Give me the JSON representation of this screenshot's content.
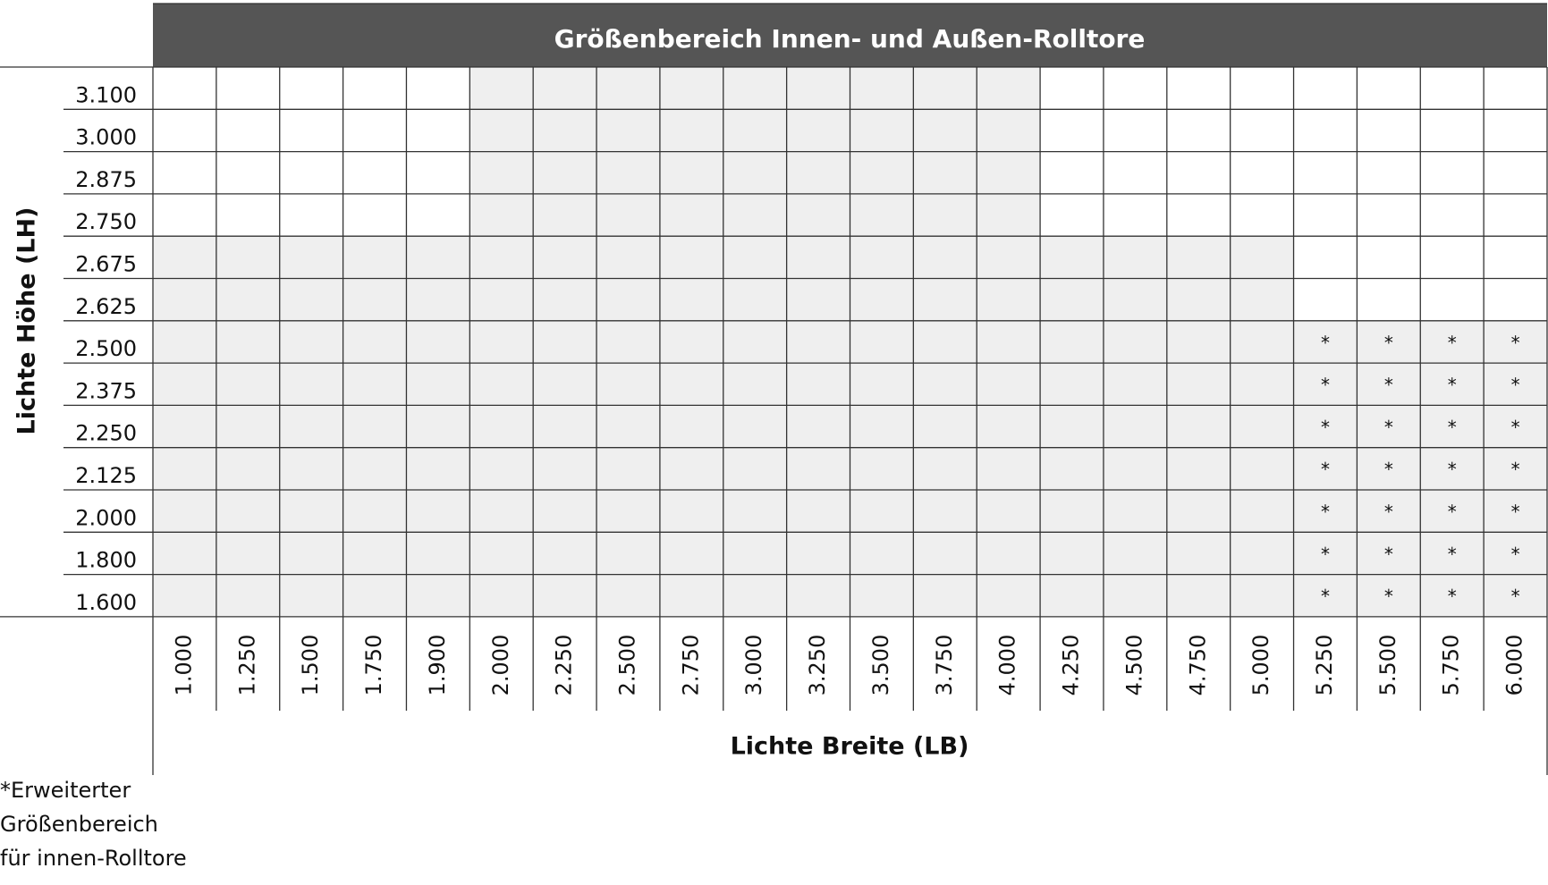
{
  "header": {
    "title": "Größenbereich Innen- und Außen-Rolltore"
  },
  "y_axis_label": "Lichte Höhe (LH)",
  "x_axis_label": "Lichte Breite (LB)",
  "columns": [
    "1.000",
    "1.250",
    "1.500",
    "1.750",
    "1.900",
    "2.000",
    "2.250",
    "2.500",
    "2.750",
    "3.000",
    "3.250",
    "3.500",
    "3.750",
    "4.000",
    "4.250",
    "4.500",
    "4.750",
    "5.000",
    "5.250",
    "5.500",
    "5.750",
    "6.000"
  ],
  "table": {
    "rows": [
      {
        "label": "3.100",
        "fills": [
          "#ffffff",
          "#ffffff",
          "#ffffff",
          "#ffffff",
          "#ffffff",
          "#efefef",
          "#efefef",
          "#efefef",
          "#efefef",
          "#efefef",
          "#efefef",
          "#efefef",
          "#efefef",
          "#efefef",
          "#ffffff",
          "#ffffff",
          "#ffffff",
          "#ffffff",
          "#ffffff",
          "#ffffff",
          "#ffffff",
          "#ffffff"
        ],
        "notes": [
          null,
          null,
          null,
          null,
          null,
          null,
          null,
          null,
          null,
          null,
          null,
          null,
          null,
          null,
          null,
          null,
          null,
          null,
          null,
          null,
          null,
          null
        ]
      },
      {
        "label": "3.000",
        "fills": [
          "#ffffff",
          "#ffffff",
          "#ffffff",
          "#ffffff",
          "#ffffff",
          "#efefef",
          "#efefef",
          "#efefef",
          "#efefef",
          "#efefef",
          "#efefef",
          "#efefef",
          "#efefef",
          "#efefef",
          "#ffffff",
          "#ffffff",
          "#ffffff",
          "#ffffff",
          "#ffffff",
          "#ffffff",
          "#ffffff",
          "#ffffff"
        ],
        "notes": [
          null,
          null,
          null,
          null,
          null,
          null,
          null,
          null,
          null,
          null,
          null,
          null,
          null,
          null,
          null,
          null,
          null,
          null,
          null,
          null,
          null,
          null
        ]
      },
      {
        "label": "2.875",
        "fills": [
          "#ffffff",
          "#ffffff",
          "#ffffff",
          "#ffffff",
          "#ffffff",
          "#efefef",
          "#efefef",
          "#efefef",
          "#efefef",
          "#efefef",
          "#efefef",
          "#efefef",
          "#efefef",
          "#efefef",
          "#ffffff",
          "#ffffff",
          "#ffffff",
          "#ffffff",
          "#ffffff",
          "#ffffff",
          "#ffffff",
          "#ffffff"
        ],
        "notes": [
          null,
          null,
          null,
          null,
          null,
          null,
          null,
          null,
          null,
          null,
          null,
          null,
          null,
          null,
          null,
          null,
          null,
          null,
          null,
          null,
          null,
          null
        ]
      },
      {
        "label": "2.750",
        "fills": [
          "#ffffff",
          "#ffffff",
          "#ffffff",
          "#ffffff",
          "#ffffff",
          "#efefef",
          "#efefef",
          "#efefef",
          "#efefef",
          "#efefef",
          "#efefef",
          "#efefef",
          "#efefef",
          "#efefef",
          "#ffffff",
          "#ffffff",
          "#ffffff",
          "#ffffff",
          "#ffffff",
          "#ffffff",
          "#ffffff",
          "#ffffff"
        ],
        "notes": [
          null,
          null,
          null,
          null,
          null,
          null,
          null,
          null,
          null,
          null,
          null,
          null,
          null,
          null,
          null,
          null,
          null,
          null,
          null,
          null,
          null,
          null
        ]
      },
      {
        "label": "2.675",
        "fills": [
          "#efefef",
          "#efefef",
          "#efefef",
          "#efefef",
          "#efefef",
          "#efefef",
          "#efefef",
          "#efefef",
          "#efefef",
          "#efefef",
          "#efefef",
          "#efefef",
          "#efefef",
          "#efefef",
          "#efefef",
          "#efefef",
          "#efefef",
          "#efefef",
          "#ffffff",
          "#ffffff",
          "#ffffff",
          "#ffffff"
        ],
        "notes": [
          null,
          null,
          null,
          null,
          null,
          null,
          null,
          null,
          null,
          null,
          null,
          null,
          null,
          null,
          null,
          null,
          null,
          null,
          null,
          null,
          null,
          null
        ]
      },
      {
        "label": "2.625",
        "fills": [
          "#efefef",
          "#efefef",
          "#efefef",
          "#efefef",
          "#efefef",
          "#efefef",
          "#efefef",
          "#efefef",
          "#efefef",
          "#efefef",
          "#efefef",
          "#efefef",
          "#efefef",
          "#efefef",
          "#efefef",
          "#efefef",
          "#efefef",
          "#efefef",
          "#ffffff",
          "#ffffff",
          "#ffffff",
          "#ffffff"
        ],
        "notes": [
          null,
          null,
          null,
          null,
          null,
          null,
          null,
          null,
          null,
          null,
          null,
          null,
          null,
          null,
          null,
          null,
          null,
          null,
          null,
          null,
          null,
          null
        ]
      },
      {
        "label": "2.500",
        "fills": [
          "#efefef",
          "#efefef",
          "#efefef",
          "#efefef",
          "#efefef",
          "#efefef",
          "#efefef",
          "#efefef",
          "#efefef",
          "#efefef",
          "#efefef",
          "#efefef",
          "#efefef",
          "#efefef",
          "#efefef",
          "#efefef",
          "#efefef",
          "#efefef",
          "#efefef",
          "#efefef",
          "#efefef",
          "#efefef"
        ],
        "notes": [
          null,
          null,
          null,
          null,
          null,
          null,
          null,
          null,
          null,
          null,
          null,
          null,
          null,
          null,
          null,
          null,
          null,
          null,
          "*",
          "*",
          "*",
          "*"
        ]
      },
      {
        "label": "2.375",
        "fills": [
          "#efefef",
          "#efefef",
          "#efefef",
          "#efefef",
          "#efefef",
          "#efefef",
          "#efefef",
          "#efefef",
          "#efefef",
          "#efefef",
          "#efefef",
          "#efefef",
          "#efefef",
          "#efefef",
          "#efefef",
          "#efefef",
          "#efefef",
          "#efefef",
          "#efefef",
          "#efefef",
          "#efefef",
          "#efefef"
        ],
        "notes": [
          null,
          null,
          null,
          null,
          null,
          null,
          null,
          null,
          null,
          null,
          null,
          null,
          null,
          null,
          null,
          null,
          null,
          null,
          "*",
          "*",
          "*",
          "*"
        ]
      },
      {
        "label": "2.250",
        "fills": [
          "#efefef",
          "#efefef",
          "#efefef",
          "#efefef",
          "#efefef",
          "#efefef",
          "#efefef",
          "#efefef",
          "#efefef",
          "#efefef",
          "#efefef",
          "#efefef",
          "#efefef",
          "#efefef",
          "#efefef",
          "#efefef",
          "#efefef",
          "#efefef",
          "#efefef",
          "#efefef",
          "#efefef",
          "#efefef"
        ],
        "notes": [
          null,
          null,
          null,
          null,
          null,
          null,
          null,
          null,
          null,
          null,
          null,
          null,
          null,
          null,
          null,
          null,
          null,
          null,
          "*",
          "*",
          "*",
          "*"
        ]
      },
      {
        "label": "2.125",
        "fills": [
          "#efefef",
          "#efefef",
          "#efefef",
          "#efefef",
          "#efefef",
          "#efefef",
          "#efefef",
          "#efefef",
          "#efefef",
          "#efefef",
          "#efefef",
          "#efefef",
          "#efefef",
          "#efefef",
          "#efefef",
          "#efefef",
          "#efefef",
          "#efefef",
          "#efefef",
          "#efefef",
          "#efefef",
          "#efefef"
        ],
        "notes": [
          null,
          null,
          null,
          null,
          null,
          null,
          null,
          null,
          null,
          null,
          null,
          null,
          null,
          null,
          null,
          null,
          null,
          null,
          "*",
          "*",
          "*",
          "*"
        ]
      },
      {
        "label": "2.000",
        "fills": [
          "#efefef",
          "#efefef",
          "#efefef",
          "#efefef",
          "#efefef",
          "#efefef",
          "#efefef",
          "#efefef",
          "#efefef",
          "#efefef",
          "#efefef",
          "#efefef",
          "#efefef",
          "#efefef",
          "#efefef",
          "#efefef",
          "#efefef",
          "#efefef",
          "#efefef",
          "#efefef",
          "#efefef",
          "#efefef"
        ],
        "notes": [
          null,
          null,
          null,
          null,
          null,
          null,
          null,
          null,
          null,
          null,
          null,
          null,
          null,
          null,
          null,
          null,
          null,
          null,
          "*",
          "*",
          "*",
          "*"
        ]
      },
      {
        "label": "1.800",
        "fills": [
          "#efefef",
          "#efefef",
          "#efefef",
          "#efefef",
          "#efefef",
          "#efefef",
          "#efefef",
          "#efefef",
          "#efefef",
          "#efefef",
          "#efefef",
          "#efefef",
          "#efefef",
          "#efefef",
          "#efefef",
          "#efefef",
          "#efefef",
          "#efefef",
          "#efefef",
          "#efefef",
          "#efefef",
          "#efefef"
        ],
        "notes": [
          null,
          null,
          null,
          null,
          null,
          null,
          null,
          null,
          null,
          null,
          null,
          null,
          null,
          null,
          null,
          null,
          null,
          null,
          "*",
          "*",
          "*",
          "*"
        ]
      },
      {
        "label": "1.600",
        "fills": [
          "#efefef",
          "#efefef",
          "#efefef",
          "#efefef",
          "#efefef",
          "#efefef",
          "#efefef",
          "#efefef",
          "#efefef",
          "#efefef",
          "#efefef",
          "#efefef",
          "#efefef",
          "#efefef",
          "#efefef",
          "#efefef",
          "#efefef",
          "#efefef",
          "#efefef",
          "#efefef",
          "#efefef",
          "#efefef"
        ],
        "notes": [
          null,
          null,
          null,
          null,
          null,
          null,
          null,
          null,
          null,
          null,
          null,
          null,
          null,
          null,
          null,
          null,
          null,
          null,
          "*",
          "*",
          "*",
          "*"
        ]
      }
    ]
  },
  "footnote": [
    "*Erweiterter",
    "Größenbereich",
    "für innen-Rolltore"
  ]
}
